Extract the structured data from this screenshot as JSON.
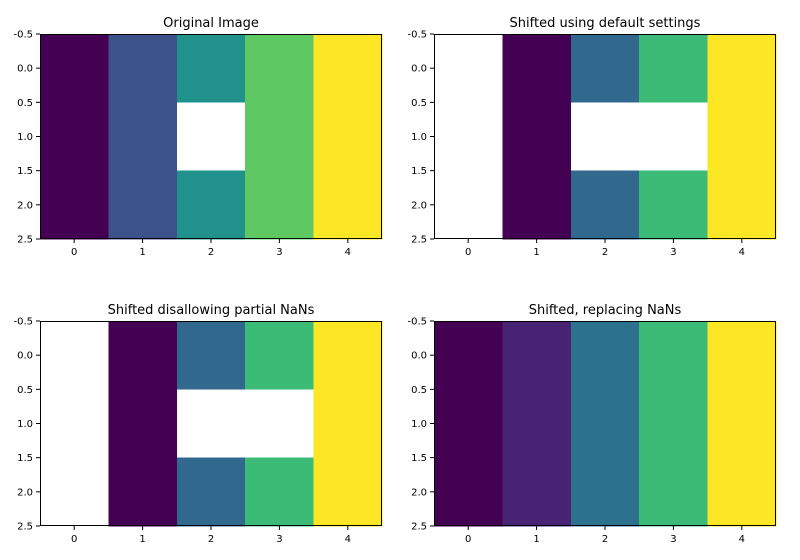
{
  "figure": {
    "colormap": "viridis",
    "colors": {
      "nan": "#ffffff",
      "frame": "#000000",
      "palette": [
        "#440154",
        "#482374",
        "#3b528b",
        "#31688e",
        "#2c728e",
        "#21918c",
        "#3bbb75",
        "#5ec962",
        "#fde725"
      ]
    }
  },
  "chart_data": [
    {
      "type": "heatmap",
      "title": "Original Image",
      "x_ticks": [
        "0",
        "1",
        "2",
        "3",
        "4"
      ],
      "y_ticks": [
        "-0.5",
        "0.0",
        "0.5",
        "1.0",
        "1.5",
        "2.0",
        "2.5"
      ],
      "xlim": [
        -0.5,
        4.5
      ],
      "ylim": [
        2.5,
        -0.5
      ],
      "values": [
        [
          0,
          1,
          2,
          3,
          4
        ],
        [
          0,
          1,
          null,
          3,
          4
        ],
        [
          0,
          1,
          2,
          3,
          4
        ]
      ],
      "cell_colors": [
        [
          "#440154",
          "#3b528b",
          "#21918c",
          "#5ec962",
          "#fde725"
        ],
        [
          "#440154",
          "#3b528b",
          null,
          "#5ec962",
          "#fde725"
        ],
        [
          "#440154",
          "#3b528b",
          "#21918c",
          "#5ec962",
          "#fde725"
        ]
      ]
    },
    {
      "type": "heatmap",
      "title": "Shifted using default settings",
      "x_ticks": [
        "0",
        "1",
        "2",
        "3",
        "4"
      ],
      "y_ticks": [
        "-0.5",
        "0.0",
        "0.5",
        "1.0",
        "1.5",
        "2.0",
        "2.5"
      ],
      "xlim": [
        -0.5,
        4.5
      ],
      "ylim": [
        2.5,
        -0.5
      ],
      "values": [
        [
          null,
          0,
          1.5,
          2.5,
          4
        ],
        [
          null,
          0,
          null,
          null,
          4
        ],
        [
          null,
          0,
          1.5,
          2.5,
          4
        ]
      ],
      "cell_colors": [
        [
          null,
          "#440154",
          "#31688e",
          "#3bbb75",
          "#fde725"
        ],
        [
          null,
          "#440154",
          null,
          null,
          "#fde725"
        ],
        [
          null,
          "#440154",
          "#31688e",
          "#3bbb75",
          "#fde725"
        ]
      ]
    },
    {
      "type": "heatmap",
      "title": "Shifted disallowing partial NaNs",
      "x_ticks": [
        "0",
        "1",
        "2",
        "3",
        "4"
      ],
      "y_ticks": [
        "-0.5",
        "0.0",
        "0.5",
        "1.0",
        "1.5",
        "2.0",
        "2.5"
      ],
      "xlim": [
        -0.5,
        4.5
      ],
      "ylim": [
        2.5,
        -0.5
      ],
      "values": [
        [
          null,
          0,
          1.5,
          2.5,
          4
        ],
        [
          null,
          0,
          null,
          null,
          4
        ],
        [
          null,
          0,
          1.5,
          2.5,
          4
        ]
      ],
      "cell_colors": [
        [
          null,
          "#440154",
          "#31688e",
          "#3bbb75",
          "#fde725"
        ],
        [
          null,
          "#440154",
          null,
          null,
          "#fde725"
        ],
        [
          null,
          "#440154",
          "#31688e",
          "#3bbb75",
          "#fde725"
        ]
      ]
    },
    {
      "type": "heatmap",
      "title": "Shifted, replacing NaNs",
      "x_ticks": [
        "0",
        "1",
        "2",
        "3",
        "4"
      ],
      "y_ticks": [
        "-0.5",
        "0.0",
        "0.5",
        "1.0",
        "1.5",
        "2.0",
        "2.5"
      ],
      "xlim": [
        -0.5,
        4.5
      ],
      "ylim": [
        2.5,
        -0.5
      ],
      "values": [
        [
          0,
          0.5,
          1.5,
          2.5,
          4
        ],
        [
          0,
          0.5,
          1.5,
          2.5,
          4
        ],
        [
          0,
          0.5,
          1.5,
          2.5,
          4
        ]
      ],
      "cell_colors": [
        [
          "#440154",
          "#482374",
          "#2c728e",
          "#3bbb75",
          "#fde725"
        ],
        [
          "#440154",
          "#482374",
          "#2c728e",
          "#3bbb75",
          "#fde725"
        ],
        [
          "#440154",
          "#482374",
          "#2c728e",
          "#3bbb75",
          "#fde725"
        ]
      ]
    }
  ]
}
